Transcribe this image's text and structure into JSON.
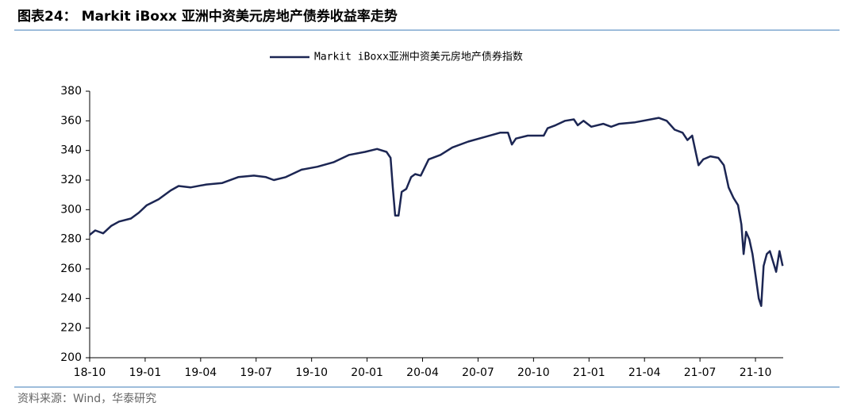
{
  "chart_data": {
    "type": "line",
    "title": "图表24： Markit iBoxx 亚洲中资美元房地产债券收益率走势",
    "source": "资料来源：Wind，华泰研究",
    "legend": "top",
    "xlim": [
      0,
      37.5
    ],
    "xticks": [
      {
        "value": 0,
        "label": "18-10"
      },
      {
        "value": 3,
        "label": "19-01"
      },
      {
        "value": 6,
        "label": "19-04"
      },
      {
        "value": 9,
        "label": "19-07"
      },
      {
        "value": 12,
        "label": "19-10"
      },
      {
        "value": 15,
        "label": "20-01"
      },
      {
        "value": 18,
        "label": "20-04"
      },
      {
        "value": 21,
        "label": "20-07"
      },
      {
        "value": 24,
        "label": "20-10"
      },
      {
        "value": 27,
        "label": "21-01"
      },
      {
        "value": 30,
        "label": "21-04"
      },
      {
        "value": 33,
        "label": "21-07"
      },
      {
        "value": 36,
        "label": "21-10"
      }
    ],
    "ylim": [
      200,
      380
    ],
    "yticks": [
      200,
      220,
      240,
      260,
      280,
      300,
      320,
      340,
      360,
      380
    ],
    "x": [
      0,
      0.3,
      0.73,
      1.16,
      1.59,
      2.23,
      2.66,
      3.09,
      3.73,
      4.38,
      4.81,
      5.45,
      6.31,
      7.17,
      8.03,
      8.88,
      9.53,
      9.96,
      10.6,
      11.46,
      12.32,
      13.18,
      14.03,
      14.89,
      15.54,
      16.05,
      16.27,
      16.39,
      16.52,
      16.7,
      16.87,
      17.12,
      17.38,
      17.6,
      17.9,
      18.33,
      18.97,
      19.61,
      20.47,
      21.33,
      22.19,
      22.62,
      22.83,
      23.05,
      23.69,
      24.55,
      24.76,
      25.19,
      25.71,
      26.18,
      26.39,
      26.7,
      27.12,
      27.77,
      28.2,
      28.63,
      29.49,
      30.34,
      30.77,
      31.2,
      31.63,
      32.06,
      32.32,
      32.58,
      32.75,
      32.92,
      33.18,
      33.56,
      33.99,
      34.29,
      34.55,
      34.81,
      35.06,
      35.24,
      35.36,
      35.49,
      35.67,
      35.84,
      36.01,
      36.18,
      36.31,
      36.44,
      36.61,
      36.78,
      36.95,
      37.12,
      37.3,
      37.47
    ],
    "series": [
      {
        "name": "Markit iBoxx亚洲中资美元房地产债券指数",
        "color": "#1c2653",
        "values": [
          283,
          286,
          284,
          289,
          292,
          294,
          298,
          303,
          307,
          313,
          316,
          315,
          317,
          318,
          322,
          323,
          322,
          320,
          322,
          327,
          329,
          332,
          337,
          339,
          341,
          339,
          335,
          315,
          296,
          296,
          312,
          314,
          322,
          324,
          323,
          334,
          337,
          342,
          346,
          349,
          352,
          352,
          344,
          348,
          350,
          350,
          355,
          357,
          360,
          361,
          357,
          360,
          356,
          358,
          356,
          358,
          359,
          361,
          362,
          360,
          354,
          352,
          347,
          350,
          340,
          330,
          334,
          336,
          335,
          330,
          315,
          308,
          303,
          290,
          270,
          285,
          280,
          270,
          255,
          240,
          235,
          262,
          270,
          272,
          265,
          258,
          272,
          262
        ]
      }
    ]
  }
}
